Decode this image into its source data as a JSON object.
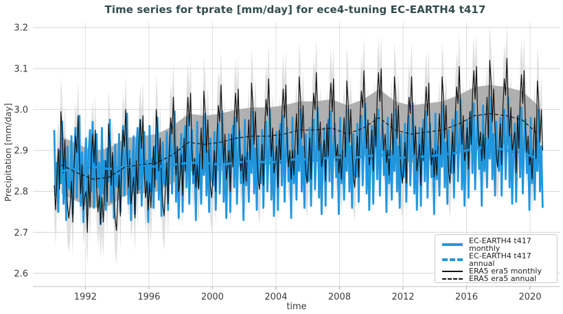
{
  "chart_data": {
    "type": "line",
    "title": "Time series for tprate [mm/day] for ece4-tuning EC-EARTH4 t417",
    "xlabel": "time",
    "ylabel": "Precipitation [mm/day]",
    "x_range": [
      1988.7,
      2021.9
    ],
    "y_range": [
      2.568,
      3.212
    ],
    "x_ticks": [
      1992,
      1996,
      2000,
      2004,
      2008,
      2012,
      2016,
      2020
    ],
    "y_ticks": [
      2.6,
      2.7,
      2.8,
      2.9,
      3.0,
      3.1,
      3.2
    ],
    "grid": true,
    "legend_position": "lower right",
    "time": {
      "start_year": 1990,
      "end": 2020.83
    },
    "z_order": [
      0,
      2,
      1,
      3
    ],
    "series": [
      {
        "name": "EC-EARTH4 t417 monthly",
        "slug": "ec-earth4-t417-monthly-line",
        "kind": "monthly",
        "color": "#2196dd",
        "line_width": 2.8,
        "dash": "",
        "annual_means": [
          2.85,
          2.855,
          2.86,
          2.855,
          2.86,
          2.865,
          2.86,
          2.865,
          2.87,
          2.87,
          2.865,
          2.87,
          2.875,
          2.87,
          2.875,
          2.88,
          2.875,
          2.885,
          2.88,
          2.885,
          2.89,
          2.88,
          2.885,
          2.885,
          2.89,
          2.895,
          2.905,
          2.91,
          2.9,
          2.895,
          2.88
        ],
        "seasonal_anomaly_cycles": [
          [
            0.1,
            -0.06,
            0.02,
            -0.1,
            0.05,
            -0.03,
            0.12,
            -0.08,
            0.03,
            -0.12,
            0.06,
            -0.04
          ],
          [
            -0.05,
            0.08,
            -0.11,
            0.03,
            0.1,
            -0.07,
            0.02,
            0.13,
            -0.09,
            0.04,
            -0.13,
            0.01
          ],
          [
            0.07,
            -0.12,
            0.04,
            0.09,
            -0.06,
            0.11,
            -0.1,
            0.02,
            0.08,
            -0.05,
            0.01,
            -0.14
          ]
        ]
      },
      {
        "name": "EC-EARTH4 t417 annual",
        "slug": "ec-earth4-t417-annual-line",
        "kind": "annual",
        "color": "#2196dd",
        "line_width": 3.4,
        "dash": "10,6",
        "values": [
          2.85,
          2.855,
          2.86,
          2.855,
          2.86,
          2.865,
          2.86,
          2.865,
          2.87,
          2.87,
          2.865,
          2.87,
          2.875,
          2.87,
          2.875,
          2.88,
          2.875,
          2.885,
          2.88,
          2.885,
          2.89,
          2.88,
          2.885,
          2.885,
          2.89,
          2.895,
          2.905,
          2.91,
          2.9,
          2.895,
          2.88
        ]
      },
      {
        "name": "ERA5 era5 monthly",
        "slug": "era5-monthly-line",
        "kind": "monthly",
        "color": "#111111",
        "line_width": 1.2,
        "dash": "",
        "annual_means": [
          2.865,
          2.845,
          2.83,
          2.835,
          2.86,
          2.865,
          2.87,
          2.89,
          2.92,
          2.915,
          2.92,
          2.93,
          2.935,
          2.935,
          2.94,
          2.95,
          2.95,
          2.955,
          2.94,
          2.955,
          2.98,
          2.95,
          2.94,
          2.945,
          2.95,
          2.965,
          2.985,
          2.99,
          2.985,
          2.975,
          2.94
        ],
        "seasonal_anomaly_cycles": [
          [
            -0.05,
            -0.11,
            -0.03,
            0.04,
            -0.06,
            0.13,
            0.08,
            -0.02,
            0.06,
            -0.04,
            -0.1,
            -0.13
          ],
          [
            -0.08,
            -0.02,
            -0.12,
            0.02,
            0.09,
            0.05,
            0.14,
            0.03,
            -0.05,
            0.02,
            -0.09,
            -0.06
          ],
          [
            -0.03,
            -0.13,
            0.01,
            -0.07,
            0.05,
            0.11,
            0.04,
            0.12,
            -0.02,
            -0.08,
            -0.04,
            -0.11
          ]
        ]
      },
      {
        "name": "ERA5 era5 annual",
        "slug": "era5-annual-line",
        "kind": "annual",
        "color": "#111111",
        "line_width": 1.2,
        "dash": "5,3",
        "values": [
          2.865,
          2.845,
          2.83,
          2.835,
          2.86,
          2.865,
          2.87,
          2.89,
          2.92,
          2.915,
          2.92,
          2.93,
          2.935,
          2.935,
          2.94,
          2.95,
          2.95,
          2.955,
          2.94,
          2.955,
          2.98,
          2.95,
          2.94,
          2.945,
          2.95,
          2.965,
          2.985,
          2.99,
          2.985,
          2.975,
          2.94
        ]
      }
    ],
    "bands": [
      {
        "name": "ERA5 monthly std band",
        "slug": "era5-monthly-std-band",
        "around_series": 2,
        "half_width": 0.085,
        "color": "#d7d7d7",
        "opacity": 0.8
      },
      {
        "name": "ERA5 annual std band",
        "slug": "era5-annual-std-band",
        "around_series": 3,
        "half_width": 0.07,
        "color": "#a8a8a8",
        "opacity": 0.9
      }
    ],
    "styles": {
      "grid_color": "#d4d4d4",
      "vgrid_color": "#dedede",
      "axis_line_color": "#cccccc",
      "tick_color": "#9a9a9a",
      "tick_label_color": "#3a3a3a",
      "title_color": "#334c4e",
      "background": "#ffffff"
    }
  }
}
